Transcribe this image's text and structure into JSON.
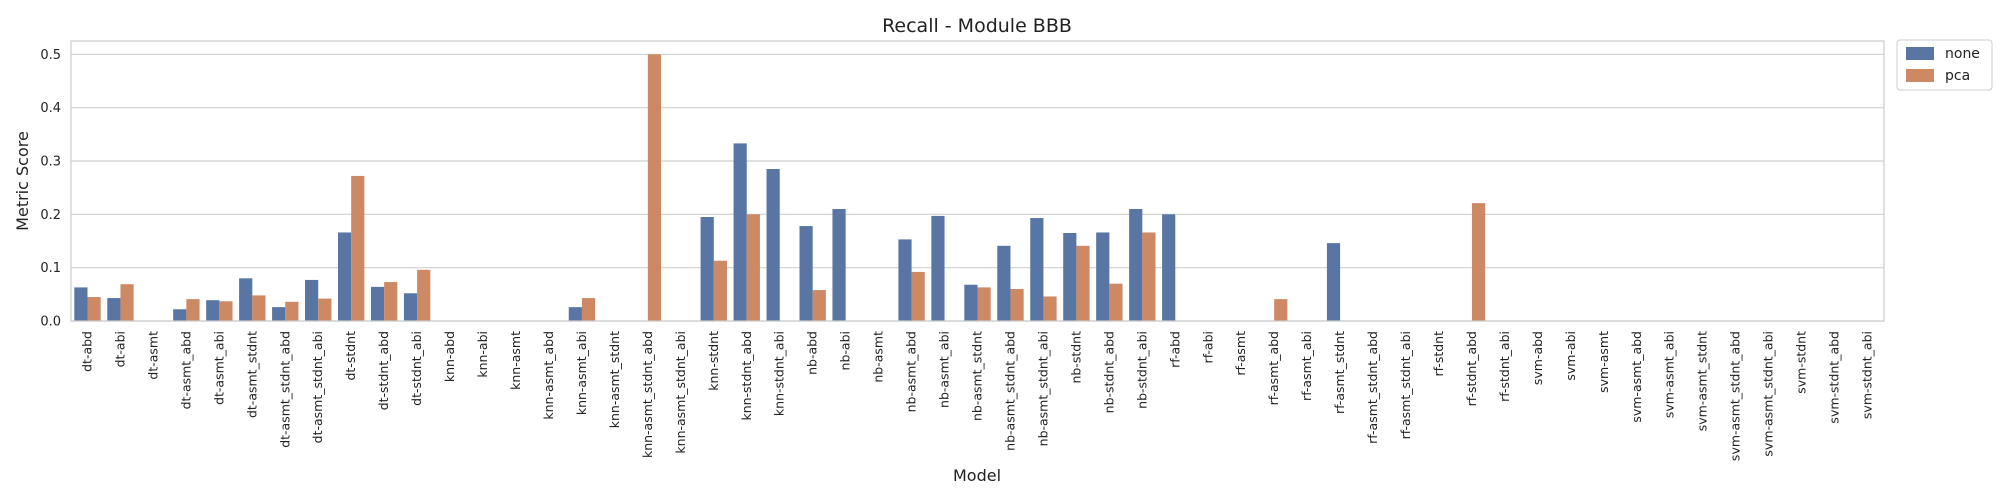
{
  "chart_data": {
    "type": "bar",
    "title": "Recall - Module BBB",
    "xlabel": "Model",
    "ylabel": "Metric Score",
    "ylim": [
      0,
      0.525
    ],
    "yticks": [
      0.0,
      0.1,
      0.2,
      0.3,
      0.4,
      0.5
    ],
    "ytick_labels": [
      "0.0",
      "0.1",
      "0.2",
      "0.3",
      "0.4",
      "0.5"
    ],
    "grid": true,
    "legend_position": "outside-top-right",
    "categories": [
      "dt-abd",
      "dt-abi",
      "dt-asmt",
      "dt-asmt_abd",
      "dt-asmt_abi",
      "dt-asmt_stdnt",
      "dt-asmt_stdnt_abd",
      "dt-asmt_stdnt_abi",
      "dt-stdnt",
      "dt-stdnt_abd",
      "dt-stdnt_abi",
      "knn-abd",
      "knn-abi",
      "knn-asmt",
      "knn-asmt_abd",
      "knn-asmt_abi",
      "knn-asmt_stdnt",
      "knn-asmt_stdnt_abd",
      "knn-asmt_stdnt_abi",
      "knn-stdnt",
      "knn-stdnt_abd",
      "knn-stdnt_abi",
      "nb-abd",
      "nb-abi",
      "nb-asmt",
      "nb-asmt_abd",
      "nb-asmt_abi",
      "nb-asmt_stdnt",
      "nb-asmt_stdnt_abd",
      "nb-asmt_stdnt_abi",
      "nb-stdnt",
      "nb-stdnt_abd",
      "nb-stdnt_abi",
      "rf-abd",
      "rf-abi",
      "rf-asmt",
      "rf-asmt_abd",
      "rf-asmt_abi",
      "rf-asmt_stdnt",
      "rf-asmt_stdnt_abd",
      "rf-asmt_stdnt_abi",
      "rf-stdnt",
      "rf-stdnt_abd",
      "rf-stdnt_abi",
      "svm-abd",
      "svm-abi",
      "svm-asmt",
      "svm-asmt_abd",
      "svm-asmt_abi",
      "svm-asmt_stdnt",
      "svm-asmt_stdnt_abd",
      "svm-asmt_stdnt_abi",
      "svm-stdnt",
      "svm-stdnt_abd",
      "svm-stdnt_abi"
    ],
    "series": [
      {
        "name": "none",
        "color": "#5875a4",
        "values": [
          0.063,
          0.043,
          0,
          0.022,
          0.039,
          0.08,
          0.026,
          0.077,
          0.166,
          0.064,
          0.052,
          0,
          0,
          0,
          0,
          0.026,
          0,
          0,
          0,
          0.195,
          0.333,
          0.285,
          0.178,
          0.21,
          0,
          0.153,
          0.197,
          0.068,
          0.141,
          0.193,
          0.165,
          0.166,
          0.21,
          0.2,
          0,
          0,
          0,
          0,
          0.146,
          0,
          0,
          0,
          0,
          0,
          0,
          0,
          0,
          0,
          0,
          0,
          0,
          0,
          0,
          0,
          0
        ]
      },
      {
        "name": "pca",
        "color": "#cc8963",
        "values": [
          0.045,
          0.069,
          0,
          0.041,
          0.037,
          0.048,
          0.036,
          0.042,
          0.272,
          0.073,
          0.096,
          0,
          0,
          0,
          0,
          0.043,
          0,
          0.5,
          0,
          0.113,
          0.2,
          0,
          0.058,
          0,
          0,
          0.092,
          0,
          0.063,
          0.06,
          0.046,
          0.141,
          0.07,
          0.166,
          0,
          0,
          0,
          0.041,
          0,
          0,
          0,
          0,
          0,
          0.221,
          0,
          0,
          0,
          0,
          0,
          0,
          0,
          0,
          0,
          0,
          0,
          0
        ]
      }
    ]
  }
}
